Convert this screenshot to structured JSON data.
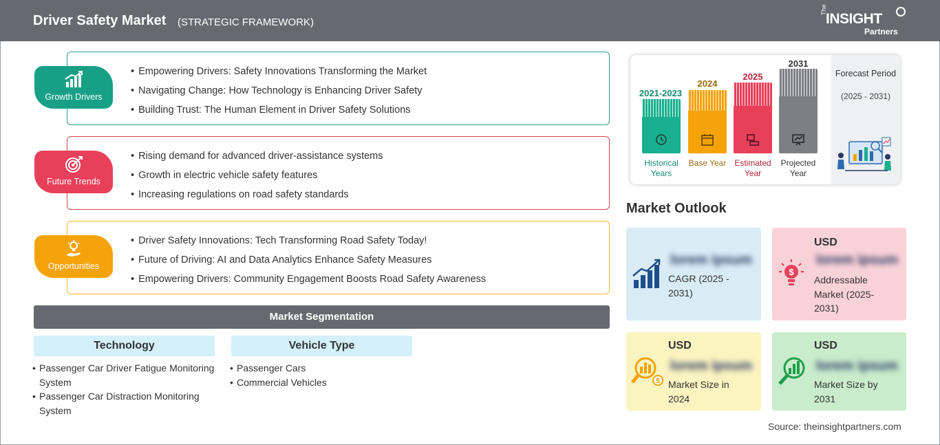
{
  "header": {
    "title": "Driver Safety Market",
    "subtitle": "(STRATEGIC FRAMEWORK)"
  },
  "logo": {
    "the": "The",
    "insight": "INSIGHT",
    "partners": "Partners"
  },
  "framework": [
    {
      "tag": "Growth Drivers",
      "color": "#17a086",
      "border": "#2c9e85",
      "items": [
        "Empowering Drivers: Safety Innovations Transforming the Market",
        "Navigating Change: How Technology is Enhancing Driver Safety",
        "Building Trust: The Human Element in Driver Safety Solutions"
      ]
    },
    {
      "tag": "Future Trends",
      "color": "#e8405a",
      "border": "#d8434f",
      "items": [
        "Rising demand for advanced driver-assistance systems",
        "Growth in electric vehicle safety features",
        "Increasing regulations on road safety standards"
      ]
    },
    {
      "tag": "Opportunities",
      "color": "#f5a30a",
      "border": "#f2b624",
      "items": [
        "Driver Safety Innovations: Tech Transforming Road Safety Today!",
        "Future of Driving: AI and Data Analytics Enhance Safety Measures",
        "Empowering Drivers: Community Engagement Boosts Road Safety Awareness"
      ]
    }
  ],
  "segmentation": {
    "title": "Market Segmentation",
    "groups": [
      {
        "heading": "Technology",
        "items": [
          "Passenger Car Driver Fatigue Monitoring System",
          "Passenger Car Distraction Monitoring System"
        ]
      },
      {
        "heading": "Vehicle Type",
        "items": [
          "Passenger Cars",
          "Commercial Vehicles"
        ]
      }
    ]
  },
  "timeline": {
    "bars": [
      {
        "year": "2021-2023",
        "caption": "Historical Years",
        "color": "#18b08f",
        "text_color": "#138a6e",
        "icon": "history-icon"
      },
      {
        "year": "2024",
        "caption": "Base Year",
        "color": "#f5a30a",
        "text_color": "#9a6a10",
        "icon": "calendar-icon"
      },
      {
        "year": "2025",
        "caption": "Estimated Year",
        "color": "#e8405a",
        "text_color": "#b3243b",
        "icon": "estimate-icon"
      },
      {
        "year": "2031",
        "caption": "Projected Year",
        "color": "#7d7f83",
        "text_color": "#333333",
        "icon": "projection-icon"
      }
    ],
    "forecast_title": "Forecast Period",
    "forecast_period": "(2025 - 2031)"
  },
  "outlook": {
    "title": "Market Outlook",
    "cards": [
      {
        "usd": "",
        "value": "lorem ipsum",
        "caption": "CAGR (2025 - 2031)",
        "bg": "#d9ecf5",
        "icon": "growth-chart-icon"
      },
      {
        "usd": "USD",
        "value": "lorem ipsum",
        "caption": "Addressable Market (2025-2031)",
        "bg": "#f9d2d8",
        "icon": "lightbulb-dollar-icon"
      },
      {
        "usd": "USD",
        "value": "lorem ipsum",
        "caption": "Market Size in 2024",
        "bg": "#fbf3c0",
        "icon": "magnifier-dollar-icon"
      },
      {
        "usd": "USD",
        "value": "lorem ipsum",
        "caption": "Market Size by 2031",
        "bg": "#c9eccd",
        "icon": "magnifier-chart-icon"
      }
    ]
  },
  "source": "Source: theinsightpartners.com"
}
